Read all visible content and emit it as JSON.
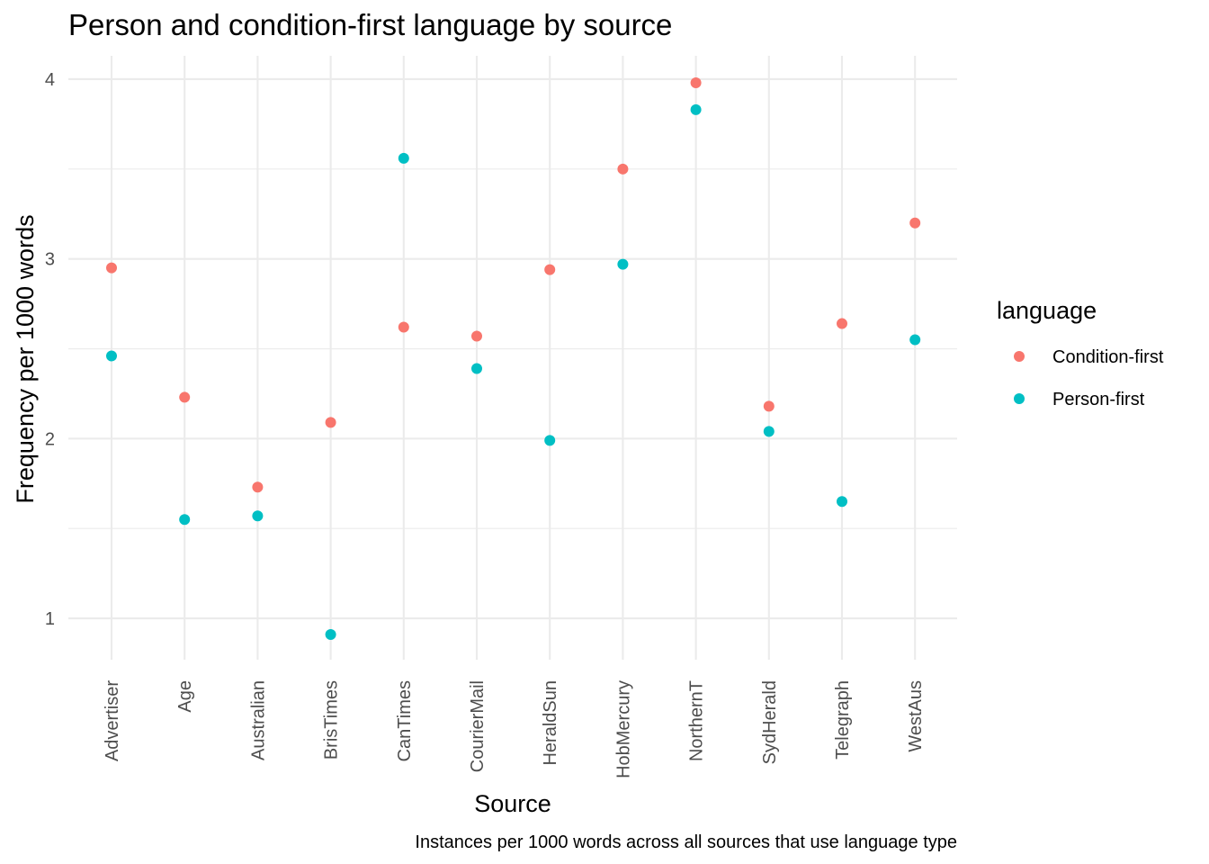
{
  "chart_data": {
    "type": "scatter",
    "title": "Person and condition-first language by source",
    "xlabel": "Source",
    "ylabel": "Frequency per 1000 words",
    "caption": "Instances per 1000 words across all sources that use language type",
    "categories": [
      "Advertiser",
      "Age",
      "Australian",
      "BrisTimes",
      "CanTimes",
      "CourierMail",
      "HeraldSun",
      "HobMercury",
      "NorthernT",
      "SydHerald",
      "Telegraph",
      "WestAus"
    ],
    "ylim": [
      0.77,
      4.13
    ],
    "yticks": [
      1,
      2,
      3,
      4
    ],
    "grid": true,
    "legend": {
      "title": "language",
      "position": "right"
    },
    "series": [
      {
        "name": "Condition-first",
        "color": "#F8766D",
        "values": [
          2.95,
          2.23,
          1.73,
          2.09,
          2.62,
          2.57,
          2.94,
          3.5,
          3.98,
          2.18,
          2.64,
          3.2
        ]
      },
      {
        "name": "Person-first",
        "color": "#00BFC4",
        "values": [
          2.46,
          1.55,
          1.57,
          0.91,
          3.56,
          2.39,
          1.99,
          2.97,
          3.83,
          2.04,
          1.65,
          2.55
        ]
      }
    ]
  }
}
